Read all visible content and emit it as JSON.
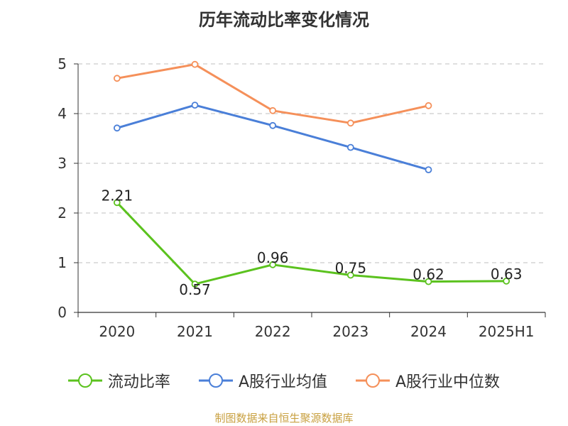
{
  "chart_data": {
    "type": "line",
    "title": "历年流动比率变化情况",
    "categories": [
      "2020",
      "2021",
      "2022",
      "2023",
      "2024",
      "2025H1"
    ],
    "ylim": [
      0,
      5
    ],
    "yticks": [
      0,
      1,
      2,
      3,
      4,
      5
    ],
    "grid": true,
    "legend_position": "bottom",
    "series": [
      {
        "name": "流动比率",
        "color": "#5bc21e",
        "values": [
          2.21,
          0.57,
          0.96,
          0.75,
          0.62,
          0.63
        ],
        "labels": [
          "2.21",
          "0.57",
          "0.96",
          "0.75",
          "0.62",
          "0.63"
        ]
      },
      {
        "name": "A股行业均值",
        "color": "#4a7fd8",
        "values": [
          3.71,
          4.17,
          3.76,
          3.32,
          2.87,
          null
        ]
      },
      {
        "name": "A股行业中位数",
        "color": "#f5905a",
        "values": [
          4.71,
          4.99,
          4.06,
          3.81,
          4.16,
          null
        ]
      }
    ]
  },
  "source_note": "制图数据来自恒生聚源数据库"
}
